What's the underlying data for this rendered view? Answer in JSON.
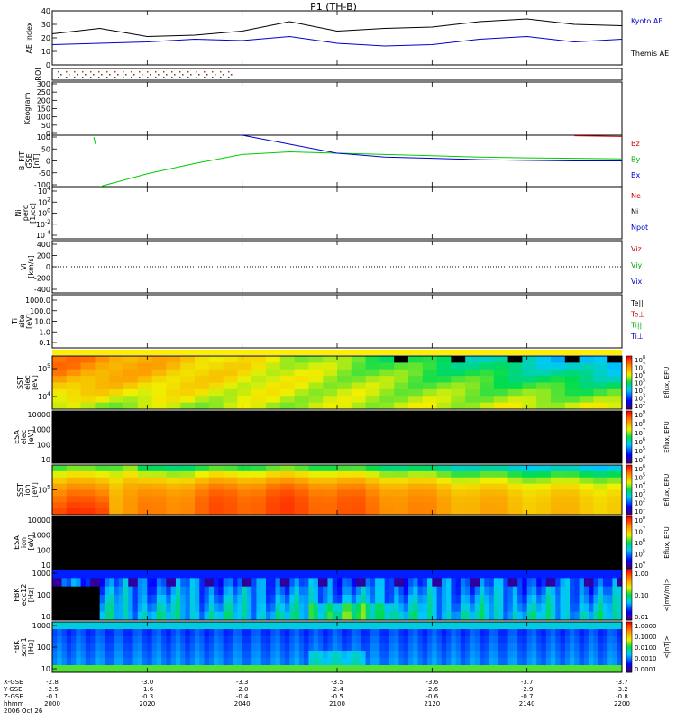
{
  "title": "P1 (TH-B)",
  "date_label": "2006 Oct 26",
  "ae_panel": {
    "ylabel": "AE Index",
    "yticks": [
      "40",
      "30",
      "20",
      "10",
      "0"
    ],
    "legend": [
      {
        "label": "Kyoto AE",
        "color": "#0000cc"
      },
      {
        "label": "Themis AE",
        "color": "#000000"
      }
    ]
  },
  "roi_panel": {
    "ylabel": "ROI"
  },
  "keogram_panel": {
    "ylabel": "Keogram",
    "yticks": [
      "300",
      "250",
      "200",
      "150",
      "100",
      "50",
      "0"
    ]
  },
  "bfit_panel": {
    "ylabel": "B_FIT\nGSE\n[nT]",
    "yticks": [
      "100",
      "50",
      "0",
      "-50",
      "-100"
    ],
    "legend": [
      {
        "label": "Bz",
        "color": "#cc0000"
      },
      {
        "label": "By",
        "color": "#00aa00"
      },
      {
        "label": "Bx",
        "color": "#0000cc"
      }
    ]
  },
  "ni_panel": {
    "ylabel": "Ni\nperc\n[1/cc]",
    "yticks": [
      "10^4",
      "10^2",
      "10^0",
      "10^-2",
      "10^-4"
    ],
    "legend": [
      {
        "label": "Ne",
        "color": "#cc0000"
      },
      {
        "label": "Ni",
        "color": "#000000"
      },
      {
        "label": "Npot",
        "color": "#0000cc"
      }
    ]
  },
  "vi_panel": {
    "ylabel": "Vi\n[km/s]",
    "yticks": [
      "400",
      "200",
      "0",
      "-200",
      "-400"
    ],
    "legend": [
      {
        "label": "Viz",
        "color": "#cc0000"
      },
      {
        "label": "Viy",
        "color": "#00aa00"
      },
      {
        "label": "Vix",
        "color": "#0000cc"
      }
    ]
  },
  "ti_panel": {
    "ylabel": "Ti\nsite\n[eV]",
    "yticks": [
      "1000.0",
      "100.0",
      "10.0",
      "1.0",
      "0.1"
    ],
    "legend": [
      {
        "label": "Te||",
        "color": "#000000"
      },
      {
        "label": "Te⊥",
        "color": "#cc0000"
      },
      {
        "label": "Ti||",
        "color": "#00aa00"
      },
      {
        "label": "Ti⊥",
        "color": "#0000cc"
      }
    ]
  },
  "sst_e_panel": {
    "ylabel": "SST\nelec\n[eV]",
    "yticks": [
      "10^5",
      "10^4"
    ],
    "cbar_label": "Eflux, EFU",
    "cbar_ticks": [
      "10^8",
      "10^7",
      "10^6",
      "10^5",
      "10^4",
      "10^3",
      "10^2"
    ]
  },
  "esa_e_panel": {
    "ylabel": "ESA\nelec\n[eV]",
    "yticks": [
      "10000",
      "1000",
      "100",
      "10"
    ],
    "cbar_label": "Eflux, EFU",
    "cbar_ticks": [
      "10^9",
      "10^8",
      "10^7",
      "10^6",
      "10^5",
      "10^4"
    ]
  },
  "sst_i_panel": {
    "ylabel": "SST\nion\n[eV]",
    "yticks": [
      "10^5"
    ],
    "cbar_label": "Eflux, EFU",
    "cbar_ticks": [
      "10^6",
      "10^5",
      "10^4",
      "10^3",
      "10^2",
      "10^1"
    ]
  },
  "esa_i_panel": {
    "ylabel": "ESA\nion\n[eV]",
    "yticks": [
      "10000",
      "1000",
      "100",
      "10"
    ],
    "cbar_label": "Eflux, EFU",
    "cbar_ticks": [
      "10^8",
      "10^7",
      "10^6",
      "10^5",
      "10^4"
    ]
  },
  "fbk_e_panel": {
    "ylabel": "FBK\nedc12\n[Hz]",
    "yticks": [
      "1000",
      "100",
      "10"
    ],
    "cbar_label": "<|mV/m|>",
    "cbar_ticks": [
      "1.00",
      "0.10",
      "0.01"
    ]
  },
  "fbk_b_panel": {
    "ylabel": "FBK\nscm1\n[Hz]",
    "yticks": [
      "1000",
      "100",
      "10"
    ],
    "cbar_label": "<|nT|>",
    "cbar_ticks": [
      "1.0000",
      "0.1000",
      "0.0100",
      "0.0010",
      "0.0001"
    ]
  },
  "x_axis": {
    "row_labels": [
      "X-GSE",
      "Y-GSE",
      "Z-GSE",
      "hhmm"
    ],
    "ticks": [
      {
        "x": "-2.8",
        "y": "-2.5",
        "z": "-0.1",
        "t": "2000"
      },
      {
        "x": "-3.0",
        "y": "-1.6",
        "z": "-0.3",
        "t": "2020"
      },
      {
        "x": "-3.3",
        "y": "-2.0",
        "z": "-0.4",
        "t": "2040"
      },
      {
        "x": "-3.5",
        "y": "-2.4",
        "z": "-0.5",
        "t": "2100"
      },
      {
        "x": "-3.6",
        "y": "-2.6",
        "z": "-0.6",
        "t": "2120"
      },
      {
        "x": "-3.7",
        "y": "-2.9",
        "z": "-0.7",
        "t": "2140"
      },
      {
        "x": "-3.7",
        "y": "-3.2",
        "z": "-0.8",
        "t": "2200"
      }
    ]
  },
  "chart_data": [
    {
      "type": "line",
      "title": "P1 (TH-B)",
      "panel": "AE Index",
      "x": [
        "2000",
        "2010",
        "2020",
        "2030",
        "2040",
        "2050",
        "2100",
        "2110",
        "2120",
        "2130",
        "2140",
        "2150",
        "2200"
      ],
      "ylim": [
        0,
        40
      ],
      "series": [
        {
          "name": "Themis AE",
          "values": [
            23,
            27,
            21,
            22,
            25,
            32,
            25,
            27,
            28,
            32,
            34,
            30,
            29
          ]
        },
        {
          "name": "Kyoto AE",
          "values": [
            15,
            16,
            17,
            19,
            18,
            21,
            16,
            14,
            15,
            19,
            21,
            17,
            19
          ]
        }
      ]
    },
    {
      "type": "line",
      "panel": "B_FIT",
      "x": [
        "2000",
        "2010",
        "2020",
        "2030",
        "2040",
        "2050",
        "2100",
        "2110",
        "2120",
        "2130",
        "2140",
        "2150",
        "2200"
      ],
      "ylim": [
        -100,
        100
      ],
      "series": [
        {
          "name": "By",
          "values": [
            null,
            -100,
            -50,
            -10,
            25,
            35,
            30,
            25,
            20,
            15,
            12,
            10,
            8
          ]
        },
        {
          "name": "Bx",
          "values": [
            null,
            null,
            null,
            null,
            100,
            65,
            30,
            15,
            10,
            5,
            2,
            0,
            0
          ]
        },
        {
          "name": "Bz",
          "values": [
            null,
            null,
            null,
            null,
            null,
            null,
            null,
            null,
            null,
            null,
            null,
            98,
            95
          ]
        }
      ]
    },
    {
      "type": "heatmap",
      "panel": "spectrograms",
      "x": [
        "2000",
        "2020",
        "2040",
        "2100",
        "2120",
        "2140",
        "2200"
      ]
    }
  ]
}
